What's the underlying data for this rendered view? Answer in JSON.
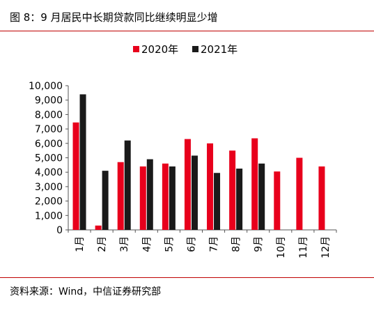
{
  "figure": {
    "title": "图 8：9 月居民中长期贷款同比继续明显少增",
    "source": "资料来源：Wind，中信证券研究部"
  },
  "colors": {
    "series_2020": "#e8001c",
    "series_2021": "#1a1a1a",
    "rule": "#c00000",
    "axis": "#555555"
  },
  "chart_data": {
    "type": "bar",
    "categories": [
      "1月",
      "2月",
      "3月",
      "4月",
      "5月",
      "6月",
      "7月",
      "8月",
      "9月",
      "10月",
      "11月",
      "12月"
    ],
    "series": [
      {
        "name": "2020年",
        "values": [
          7450,
          300,
          4700,
          4400,
          4600,
          6300,
          6000,
          5500,
          6350,
          4050,
          5000,
          4400
        ]
      },
      {
        "name": "2021年",
        "values": [
          9400,
          4100,
          6200,
          4900,
          4400,
          5150,
          3950,
          4250,
          4600,
          null,
          null,
          null
        ]
      }
    ],
    "ylim": [
      0,
      10000
    ],
    "yticks": [
      "0",
      "1,000",
      "2,000",
      "3,000",
      "4,000",
      "5,000",
      "6,000",
      "7,000",
      "8,000",
      "9,000",
      "10,000"
    ],
    "legend": "top-center",
    "grid": false
  }
}
